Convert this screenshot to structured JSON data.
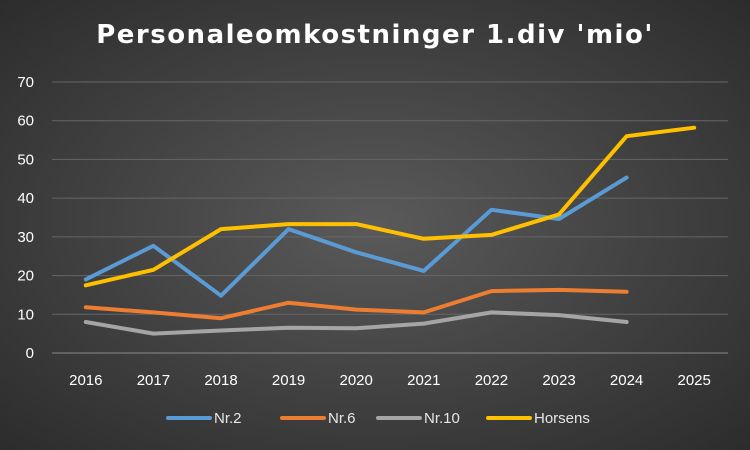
{
  "chart_data": {
    "type": "line",
    "title": "Personaleomkostninger 1.div 'mio'",
    "xlabel": "",
    "ylabel": "",
    "categories": [
      "2016",
      "2017",
      "2018",
      "2019",
      "2020",
      "2021",
      "2022",
      "2023",
      "2024",
      "2025"
    ],
    "ylim": [
      0,
      70
    ],
    "yticks": [
      0,
      10,
      20,
      30,
      40,
      50,
      60,
      70
    ],
    "grid": true,
    "legend_position": "bottom",
    "series": [
      {
        "name": "Nr.2",
        "color": "#5b9bd5",
        "values": [
          19,
          27.7,
          14.8,
          32,
          26,
          21.2,
          37,
          34.6,
          45.3,
          null
        ]
      },
      {
        "name": "Nr.6",
        "color": "#ed7d31",
        "values": [
          11.8,
          10.5,
          9,
          13,
          11.2,
          10.5,
          16,
          16.3,
          15.8,
          null
        ]
      },
      {
        "name": "Nr.10",
        "color": "#a5a5a5",
        "values": [
          8,
          5,
          5.8,
          6.5,
          6.4,
          7.6,
          10.5,
          9.8,
          8,
          null
        ]
      },
      {
        "name": "Horsens",
        "color": "#ffc000",
        "values": [
          17.5,
          21.5,
          32,
          33.3,
          33.3,
          29.5,
          30.5,
          35.8,
          56,
          58.2
        ]
      }
    ]
  }
}
